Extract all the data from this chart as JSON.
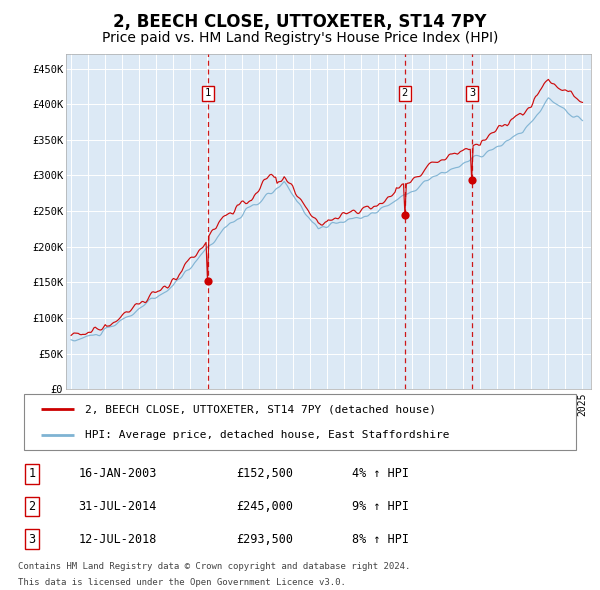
{
  "title": "2, BEECH CLOSE, UTTOXETER, ST14 7PY",
  "subtitle": "Price paid vs. HM Land Registry's House Price Index (HPI)",
  "title_fontsize": 12,
  "subtitle_fontsize": 10,
  "ylabel_ticks": [
    "£0",
    "£50K",
    "£100K",
    "£150K",
    "£200K",
    "£250K",
    "£300K",
    "£350K",
    "£400K",
    "£450K"
  ],
  "ytick_vals": [
    0,
    50000,
    100000,
    150000,
    200000,
    250000,
    300000,
    350000,
    400000,
    450000
  ],
  "ylim": [
    0,
    470000
  ],
  "xlim_start": 1994.7,
  "xlim_end": 2025.5,
  "background_color": "#dce9f5",
  "grid_color": "#ffffff",
  "red_line_color": "#cc0000",
  "blue_line_color": "#7fb3d3",
  "sale_marker_color": "#cc0000",
  "vline_color": "#cc0000",
  "sale1_date": 2003.04,
  "sale1_price": 152500,
  "sale2_date": 2014.58,
  "sale2_price": 245000,
  "sale3_date": 2018.53,
  "sale3_price": 293500,
  "legend_label_red": "2, BEECH CLOSE, UTTOXETER, ST14 7PY (detached house)",
  "legend_label_blue": "HPI: Average price, detached house, East Staffordshire",
  "table_entries": [
    {
      "num": "1",
      "date": "16-JAN-2003",
      "price": "£152,500",
      "change": "4% ↑ HPI"
    },
    {
      "num": "2",
      "date": "31-JUL-2014",
      "price": "£245,000",
      "change": "9% ↑ HPI"
    },
    {
      "num": "3",
      "date": "12-JUL-2018",
      "price": "£293,500",
      "change": "8% ↑ HPI"
    }
  ],
  "footnote1": "Contains HM Land Registry data © Crown copyright and database right 2024.",
  "footnote2": "This data is licensed under the Open Government Licence v3.0."
}
